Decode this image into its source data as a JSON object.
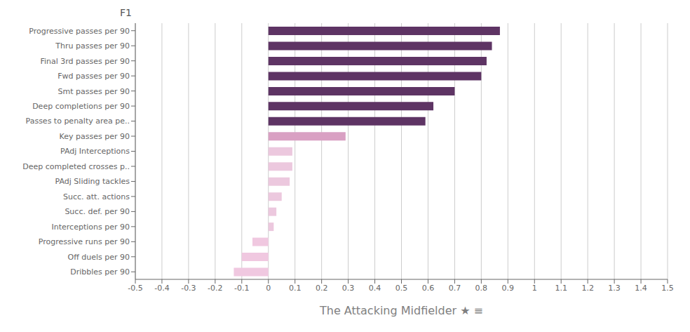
{
  "chart_data": {
    "type": "bar",
    "orientation": "horizontal",
    "title": "F1",
    "xlabel": "The Attacking Midfielder ★ ≡",
    "categories": [
      "Progressive passes per 90",
      "Thru passes per 90",
      "Final 3rd passes per 90",
      "Fwd passes per 90",
      "Smt passes per 90",
      "Deep completions per 90",
      "Passes to penalty area pe..",
      "Key passes per 90",
      "PAdj Interceptions",
      "Deep completed crosses p..",
      "PAdj Sliding tackles",
      "Succ. att. actions",
      "Succ. def. per 90",
      "Interceptions per 90",
      "Progressive runs per 90",
      "Off duels per 90",
      "Dribbles per 90"
    ],
    "values": [
      0.87,
      0.84,
      0.82,
      0.8,
      0.7,
      0.62,
      0.59,
      0.29,
      0.09,
      0.09,
      0.08,
      0.05,
      0.03,
      0.02,
      -0.06,
      -0.1,
      -0.13
    ],
    "colors": [
      "#5e3464",
      "#5e3464",
      "#5e3464",
      "#5e3464",
      "#5e3464",
      "#5e3464",
      "#5e3464",
      "#d9a0c3",
      "#ecc8de",
      "#ecc8de",
      "#ecc8de",
      "#ecc8de",
      "#ecc8de",
      "#ecc8de",
      "#f0c8e0",
      "#f0c8e0",
      "#f0c8e0"
    ],
    "xlim": [
      -0.5,
      1.5
    ],
    "xticks": [
      -0.5,
      -0.4,
      -0.3,
      -0.2,
      -0.1,
      0.0,
      0.1,
      0.2,
      0.3,
      0.4,
      0.5,
      0.6,
      0.7,
      0.8,
      0.9,
      1.0,
      1.1,
      1.2,
      1.3,
      1.4,
      1.5
    ],
    "grid": true
  }
}
